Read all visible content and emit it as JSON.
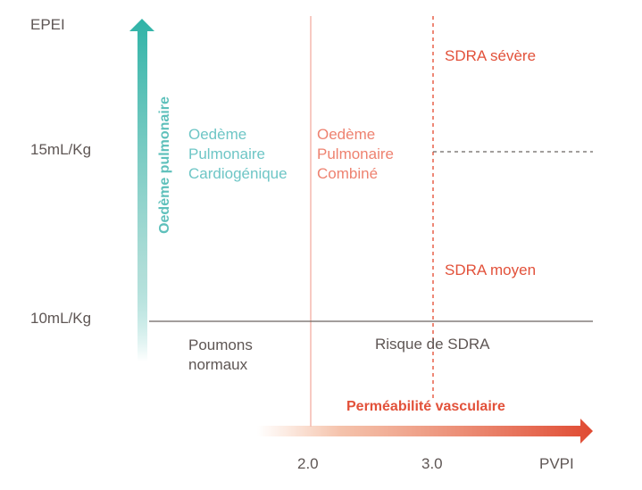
{
  "y_axis": {
    "label": "EPEI",
    "ticks": [
      "15mL/Kg",
      "10mL/Kg"
    ],
    "arrow_label": "Oedème pulmonaire",
    "arrow_color": "#2fb3a7"
  },
  "x_axis": {
    "ticks": [
      "2.0",
      "3.0"
    ],
    "unit": "PVPI",
    "arrow_label": "Perméabilité vasculaire",
    "arrow_color": "#e04a32"
  },
  "regions": {
    "cardiogenic": "Oedème\nPulmonaire\nCardiogénique",
    "combined": "Oedème\nPulmonaire\nCombiné",
    "severe": "SDRA sévère",
    "moderate": "SDRA moyen",
    "normal": "Poumons\nnormaux",
    "risk": "Risque de SDRA"
  },
  "colors": {
    "teal_text": "#6ec6c6",
    "salmon_text": "#ee8270",
    "red_text": "#e2513a",
    "grey_text": "#5e5654"
  }
}
